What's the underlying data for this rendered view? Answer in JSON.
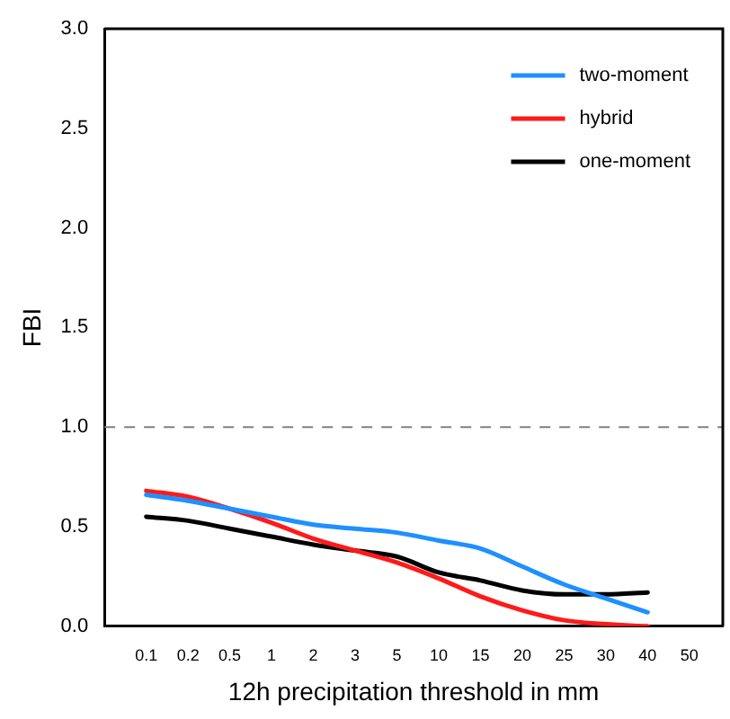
{
  "chart_data": {
    "type": "line",
    "xlabel": "12h precipitation threshold in mm",
    "ylabel": "FBI",
    "categories": [
      "0.1",
      "0.2",
      "0.5",
      "1",
      "2",
      "3",
      "5",
      "10",
      "15",
      "20",
      "25",
      "30",
      "40",
      "50"
    ],
    "series": [
      {
        "name": "two-moment",
        "color": "#1e90ff",
        "values": [
          0.66,
          0.63,
          0.59,
          0.55,
          0.51,
          0.49,
          0.47,
          0.43,
          0.39,
          0.3,
          0.21,
          0.14,
          0.07,
          null
        ]
      },
      {
        "name": "hybrid",
        "color": "#ff1a1a",
        "values": [
          0.68,
          0.65,
          0.59,
          0.52,
          0.44,
          0.38,
          0.32,
          0.24,
          0.15,
          0.08,
          0.03,
          0.01,
          0.0,
          null
        ]
      },
      {
        "name": "one-moment",
        "color": "#000000",
        "values": [
          0.55,
          0.53,
          0.49,
          0.45,
          0.41,
          0.38,
          0.35,
          0.27,
          0.23,
          0.18,
          0.16,
          0.16,
          0.17,
          null
        ]
      }
    ],
    "ylim": [
      0,
      3
    ],
    "yticks": [
      {
        "value": 0,
        "label": "0.0"
      },
      {
        "value": 0.5,
        "label": "0.5"
      },
      {
        "value": 1,
        "label": "1.0"
      },
      {
        "value": 1.5,
        "label": "1.5"
      },
      {
        "value": 2,
        "label": "2.0"
      },
      {
        "value": 2.5,
        "label": "2.5"
      },
      {
        "value": 3,
        "label": "3.0"
      }
    ],
    "ref_lines": [
      {
        "axis": "y",
        "value": 1,
        "color": "#808080",
        "line_style": "dashed"
      }
    ],
    "legend": "top right",
    "grid": false,
    "marker": "none",
    "line_style": "solid"
  }
}
